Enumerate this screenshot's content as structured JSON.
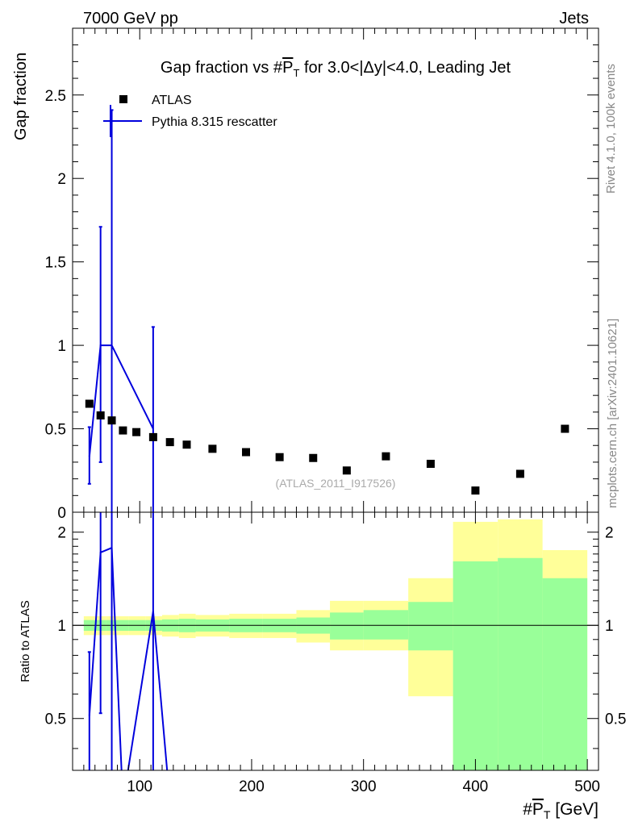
{
  "header": {
    "left": "7000 GeV pp",
    "right": "Jets"
  },
  "side_labels": {
    "rivet": "Rivet 4.1.0,  100k events",
    "mcplots": "mcplots.cern.ch [arXiv:2401.10621]"
  },
  "chart_data": [
    {
      "type": "scatter",
      "panel": "main",
      "title": "Gap fraction vs #P̅T for 3.0<|Δy|<4.0, Leading Jet",
      "title_pre": "Gap fraction vs #",
      "title_p": "P",
      "title_sub": "T",
      "title_post": " for 3.0<|Δy|<4.0, Leading Jet",
      "ylabel": "Gap fraction",
      "xlim": [
        40,
        510
      ],
      "ylim": [
        0,
        2.9
      ],
      "yticks": [
        0,
        0.5,
        1,
        1.5,
        2,
        2.5
      ],
      "ytick_labels": [
        "0",
        "0.5",
        "1",
        "1.5",
        "2",
        "2.5"
      ],
      "watermark": "(ATLAS_2011_I917526)",
      "legend": {
        "position": "top-left",
        "entries": [
          {
            "label": "ATLAS",
            "marker": "square",
            "color": "#000000"
          },
          {
            "label": "Pythia 8.315 rescatter",
            "marker": "line",
            "color": "#0000dd"
          }
        ]
      },
      "series": [
        {
          "name": "ATLAS",
          "color": "#000000",
          "x": [
            55,
            65,
            75,
            85,
            97,
            112,
            127,
            142,
            165,
            195,
            225,
            255,
            285,
            320,
            360,
            400,
            440,
            480
          ],
          "y": [
            0.65,
            0.58,
            0.55,
            0.49,
            0.48,
            0.45,
            0.42,
            0.405,
            0.38,
            0.36,
            0.33,
            0.325,
            0.25,
            0.335,
            0.29,
            0.13,
            0.23,
            0.5
          ]
        },
        {
          "name": "Pythia 8.315 rescatter",
          "color": "#0000dd",
          "x": [
            55,
            65,
            75,
            112
          ],
          "y": [
            0.333,
            1.0,
            1.0,
            0.5
          ],
          "err_lo": [
            0.17,
            0.3,
            0.0,
            0.0
          ],
          "err_hi": [
            0.51,
            1.71,
            2.41,
            1.11
          ]
        }
      ]
    },
    {
      "type": "area",
      "panel": "ratio",
      "ylabel": "Ratio to ATLAS",
      "xlabel": "#P̅T [GeV]",
      "xlabel_pre": "#",
      "xlabel_p": "P",
      "xlabel_sub": "T",
      "xlabel_post": " [GeV]",
      "xlim": [
        40,
        510
      ],
      "ylim": [
        0.34,
        2.32
      ],
      "xticks": [
        100,
        200,
        300,
        400,
        500
      ],
      "xtick_labels": [
        "100",
        "200",
        "300",
        "400",
        "500"
      ],
      "yticks": [
        0.5,
        1,
        2
      ],
      "ytick_labels": [
        "0.5",
        "1",
        "2"
      ],
      "reference": 1.0,
      "bands": {
        "yellow_color": "#ffff99",
        "green_color": "#99ff99",
        "bins": [
          {
            "lo": 50,
            "hi": 60,
            "ylo": 0.93,
            "yhi": 1.07,
            "glo": 0.96,
            "ghi": 1.04
          },
          {
            "lo": 60,
            "hi": 70,
            "ylo": 0.93,
            "yhi": 1.07,
            "glo": 0.96,
            "ghi": 1.04
          },
          {
            "lo": 70,
            "hi": 80,
            "ylo": 0.93,
            "yhi": 1.07,
            "glo": 0.96,
            "ghi": 1.04
          },
          {
            "lo": 80,
            "hi": 90,
            "ylo": 0.93,
            "yhi": 1.07,
            "glo": 0.96,
            "ghi": 1.04
          },
          {
            "lo": 90,
            "hi": 105,
            "ylo": 0.93,
            "yhi": 1.07,
            "glo": 0.96,
            "ghi": 1.04
          },
          {
            "lo": 105,
            "hi": 120,
            "ylo": 0.93,
            "yhi": 1.07,
            "glo": 0.96,
            "ghi": 1.04
          },
          {
            "lo": 120,
            "hi": 135,
            "ylo": 0.92,
            "yhi": 1.08,
            "glo": 0.955,
            "ghi": 1.045
          },
          {
            "lo": 135,
            "hi": 150,
            "ylo": 0.91,
            "yhi": 1.09,
            "glo": 0.95,
            "ghi": 1.05
          },
          {
            "lo": 150,
            "hi": 180,
            "ylo": 0.92,
            "yhi": 1.08,
            "glo": 0.955,
            "ghi": 1.045
          },
          {
            "lo": 180,
            "hi": 210,
            "ylo": 0.91,
            "yhi": 1.09,
            "glo": 0.95,
            "ghi": 1.05
          },
          {
            "lo": 210,
            "hi": 240,
            "ylo": 0.91,
            "yhi": 1.09,
            "glo": 0.95,
            "ghi": 1.05
          },
          {
            "lo": 240,
            "hi": 270,
            "ylo": 0.88,
            "yhi": 1.12,
            "glo": 0.94,
            "ghi": 1.06
          },
          {
            "lo": 270,
            "hi": 300,
            "ylo": 0.83,
            "yhi": 1.2,
            "glo": 0.9,
            "ghi": 1.1
          },
          {
            "lo": 300,
            "hi": 340,
            "ylo": 0.83,
            "yhi": 1.2,
            "glo": 0.9,
            "ghi": 1.12
          },
          {
            "lo": 340,
            "hi": 380,
            "ylo": 0.59,
            "yhi": 1.42,
            "glo": 0.83,
            "ghi": 1.19
          },
          {
            "lo": 380,
            "hi": 420,
            "ylo": 0.34,
            "yhi": 2.16,
            "glo": 0.34,
            "ghi": 1.61
          },
          {
            "lo": 420,
            "hi": 460,
            "ylo": 0.34,
            "yhi": 2.2,
            "glo": 0.34,
            "ghi": 1.65
          },
          {
            "lo": 460,
            "hi": 500,
            "ylo": 0.63,
            "yhi": 1.75,
            "glo": 0.34,
            "ghi": 1.42
          }
        ]
      },
      "series": [
        {
          "name": "Pythia 8.315 rescatter / ATLAS",
          "color": "#0000dd",
          "x": [
            55,
            65,
            75,
            85,
            112,
            127
          ],
          "y": [
            0.51,
            1.72,
            1.78,
            0.0,
            1.11,
            0.0
          ],
          "err_lo": [
            0.2,
            0.52,
            0.0,
            0.0,
            0.0,
            0.0
          ],
          "err_hi": [
            0.82,
            4.0,
            4.0,
            0.0,
            4.0,
            0.0
          ]
        }
      ]
    }
  ]
}
